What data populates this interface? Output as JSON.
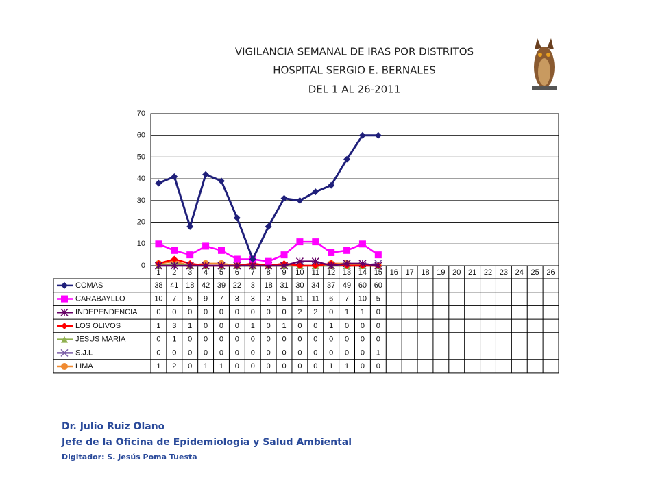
{
  "chart_data": {
    "type": "line",
    "title": [
      "VIGILANCIA SEMANAL DE IRAS POR DISTRITOS",
      "HOSPITAL SERGIO E. BERNALES",
      "DEL 1 AL 26-2011"
    ],
    "categories": [
      "1",
      "2",
      "3",
      "4",
      "5",
      "6",
      "7",
      "8",
      "9",
      "10",
      "11",
      "12",
      "13",
      "14",
      "15",
      "16",
      "17",
      "18",
      "19",
      "20",
      "21",
      "22",
      "23",
      "24",
      "25",
      "26"
    ],
    "series": [
      {
        "name": "COMAS",
        "color": "#1f1f7a",
        "marker": "diamond",
        "values": [
          38,
          41,
          18,
          42,
          39,
          22,
          3,
          18,
          31,
          30,
          34,
          37,
          49,
          60,
          60,
          null,
          null,
          null,
          null,
          null,
          null,
          null,
          null,
          null,
          null,
          null
        ]
      },
      {
        "name": "CARABAYLLO",
        "color": "#ff00ff",
        "marker": "square",
        "values": [
          10,
          7,
          5,
          9,
          7,
          3,
          3,
          2,
          5,
          11,
          11,
          6,
          7,
          10,
          5,
          null,
          null,
          null,
          null,
          null,
          null,
          null,
          null,
          null,
          null,
          null
        ]
      },
      {
        "name": "INDEPENDENCIA",
        "color": "#660066",
        "marker": "star",
        "values": [
          0,
          0,
          0,
          0,
          0,
          0,
          0,
          0,
          0,
          2,
          2,
          0,
          1,
          1,
          0,
          null,
          null,
          null,
          null,
          null,
          null,
          null,
          null,
          null,
          null,
          null
        ]
      },
      {
        "name": "LOS OLIVOS",
        "color": "#ff0000",
        "marker": "diamond",
        "values": [
          1,
          3,
          1,
          0,
          0,
          0,
          1,
          0,
          1,
          0,
          0,
          1,
          0,
          0,
          0,
          null,
          null,
          null,
          null,
          null,
          null,
          null,
          null,
          null,
          null,
          null
        ]
      },
      {
        "name": "JESUS MARIA",
        "color": "#8fb04f",
        "marker": "triangle",
        "values": [
          0,
          1,
          0,
          0,
          0,
          0,
          0,
          0,
          0,
          0,
          0,
          0,
          0,
          0,
          0,
          null,
          null,
          null,
          null,
          null,
          null,
          null,
          null,
          null,
          null,
          null
        ]
      },
      {
        "name": "S.J.L",
        "color": "#7b5ea7",
        "marker": "x",
        "values": [
          0,
          0,
          0,
          0,
          0,
          0,
          0,
          0,
          0,
          0,
          0,
          0,
          0,
          0,
          1,
          null,
          null,
          null,
          null,
          null,
          null,
          null,
          null,
          null,
          null,
          null
        ]
      },
      {
        "name": "LIMA",
        "color": "#f08a30",
        "marker": "circle",
        "values": [
          1,
          2,
          0,
          1,
          1,
          0,
          0,
          0,
          0,
          0,
          0,
          1,
          1,
          0,
          0,
          null,
          null,
          null,
          null,
          null,
          null,
          null,
          null,
          null,
          null,
          null
        ]
      }
    ],
    "ylim": [
      0,
      70
    ],
    "yticks": [
      0,
      10,
      20,
      30,
      40,
      50,
      60,
      70
    ],
    "grid": true
  },
  "footer": [
    "Dr.  Julio Ruiz Olano",
    "Jefe de la Oficina de Epidemiologia y  Salud Ambiental",
    "Digitador: S. Jesús Poma Tuesta"
  ]
}
